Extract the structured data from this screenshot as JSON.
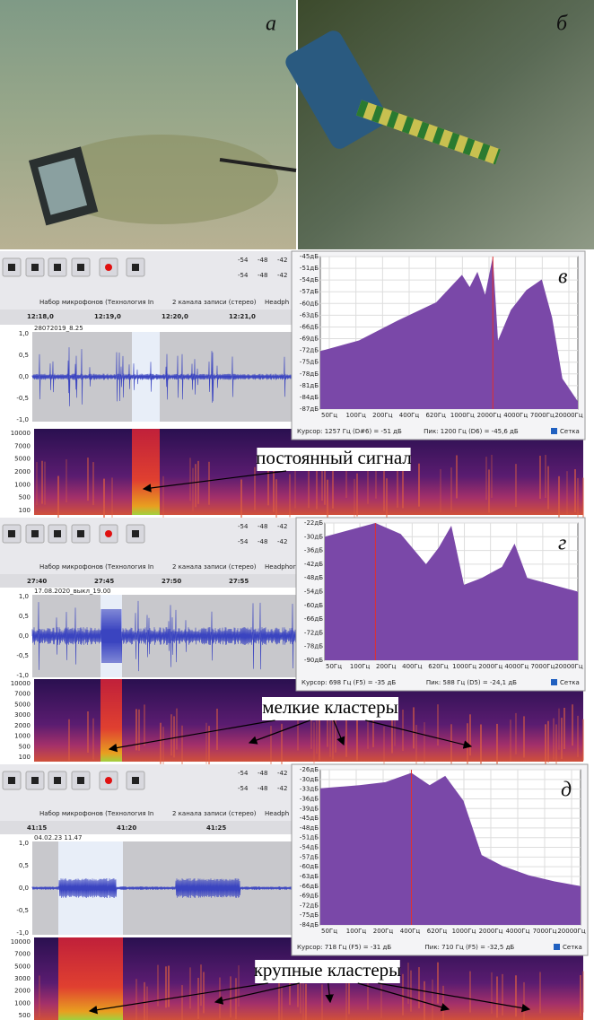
{
  "photos": [
    {
      "label": "а"
    },
    {
      "label": "б"
    }
  ],
  "panels": [
    {
      "label": "в",
      "annotation": "постоянный сигнал",
      "toolbar": {
        "mic": "Набор микрофонов (Технология In",
        "channels": "2 канала записи (стерео)",
        "output": "Headph",
        "meter": [
          "-54",
          "-48",
          "-42"
        ]
      },
      "ruler": [
        "12:18,0",
        "12:19,0",
        "12:20,0",
        "12:21,0"
      ],
      "track": "28072019_8.25",
      "wave_ticks": [
        "1,0",
        "0,5",
        "0,0",
        "-0,5",
        "-1,0"
      ],
      "spec_ticks": [
        "10000",
        "7000",
        "5000",
        "2000",
        "1000",
        "500",
        "100"
      ],
      "spectrum": {
        "yticks": [
          "-45дБ",
          "-51дБ",
          "-54дБ",
          "-57дБ",
          "-60дБ",
          "-63дБ",
          "-66дБ",
          "-69дБ",
          "-72дБ",
          "-75дБ",
          "-78дБ",
          "-81дБ",
          "-84дБ",
          "-87дБ"
        ],
        "xticks": [
          "50Гц",
          "100Гц",
          "200Гц",
          "400Гц",
          "620Гц",
          "1000Гц",
          "2000Гц",
          "4000Гц",
          "7000Гц",
          "20000Гц"
        ],
        "cursor": "Курсор: 1257 Гц (D#6) = -51 дБ",
        "peak": "Пик: 1200 Гц (D6) = -45,6 дБ",
        "grid": "Сетка"
      }
    },
    {
      "label": "г",
      "annotation": "мелкие кластеры",
      "toolbar": {
        "mic": "Набор микрофонов (Технология In",
        "channels": "2 канала записи (стерео)",
        "output": "Headphon",
        "meter": [
          "-54",
          "-48",
          "-42"
        ]
      },
      "ruler": [
        "27:40",
        "27:45",
        "27:50",
        "27:55"
      ],
      "track": "17.08.2020_выкл_19.00",
      "wave_ticks": [
        "1,0",
        "0,5",
        "0,0",
        "-0,5",
        "-1,0"
      ],
      "spec_ticks": [
        "10000",
        "7000",
        "5000",
        "3000",
        "2000",
        "1000",
        "500",
        "100"
      ],
      "spectrum": {
        "yticks": [
          "-22дБ",
          "-30дБ",
          "-36дБ",
          "-42дБ",
          "-48дБ",
          "-54дБ",
          "-60дБ",
          "-66дБ",
          "-72дБ",
          "-78дБ",
          "-90дБ"
        ],
        "xticks": [
          "50Гц",
          "100Гц",
          "200Гц",
          "400Гц",
          "620Гц",
          "1000Гц",
          "2000Гц",
          "4000Гц",
          "7000Гц",
          "20000Гц"
        ],
        "cursor": "Курсор: 698 Гц (F5) = -35 дБ",
        "peak": "Пик: 588 Гц (D5) = -24,1 дБ",
        "grid": "Сетка"
      }
    },
    {
      "label": "д",
      "annotation": "крупные кластеры",
      "toolbar": {
        "mic": "Набор микрофонов (Технология In",
        "channels": "2 канала записи (стерео)",
        "output": "Headph",
        "meter": [
          "-54",
          "-48",
          "-42"
        ]
      },
      "ruler": [
        "41:15",
        "41:20",
        "41:25"
      ],
      "track": "04.02.23 11.47",
      "wave_ticks": [
        "1,0",
        "0,5",
        "0,0",
        "-0,5",
        "-1,0"
      ],
      "spec_ticks": [
        "10000",
        "7000",
        "5000",
        "3000",
        "2000",
        "1000",
        "500"
      ],
      "spectrum": {
        "yticks": [
          "-26дБ",
          "-30дБ",
          "-33дБ",
          "-36дБ",
          "-39дБ",
          "-45дБ",
          "-48дБ",
          "-51дБ",
          "-54дБ",
          "-57дБ",
          "-60дБ",
          "-63дБ",
          "-66дБ",
          "-69дБ",
          "-72дБ",
          "-75дБ",
          "-84дБ"
        ],
        "xticks": [
          "50Гц",
          "100Гц",
          "200Гц",
          "400Гц",
          "620Гц",
          "1000Гц",
          "2000Гц",
          "4000Гц",
          "7000Гц",
          "20000Гц"
        ],
        "cursor": "Курсор: 718 Гц (F5) = -31 дБ",
        "peak": "Пик: 710 Гц (F5) = -32,5 дБ",
        "grid": "Сетка"
      }
    }
  ]
}
